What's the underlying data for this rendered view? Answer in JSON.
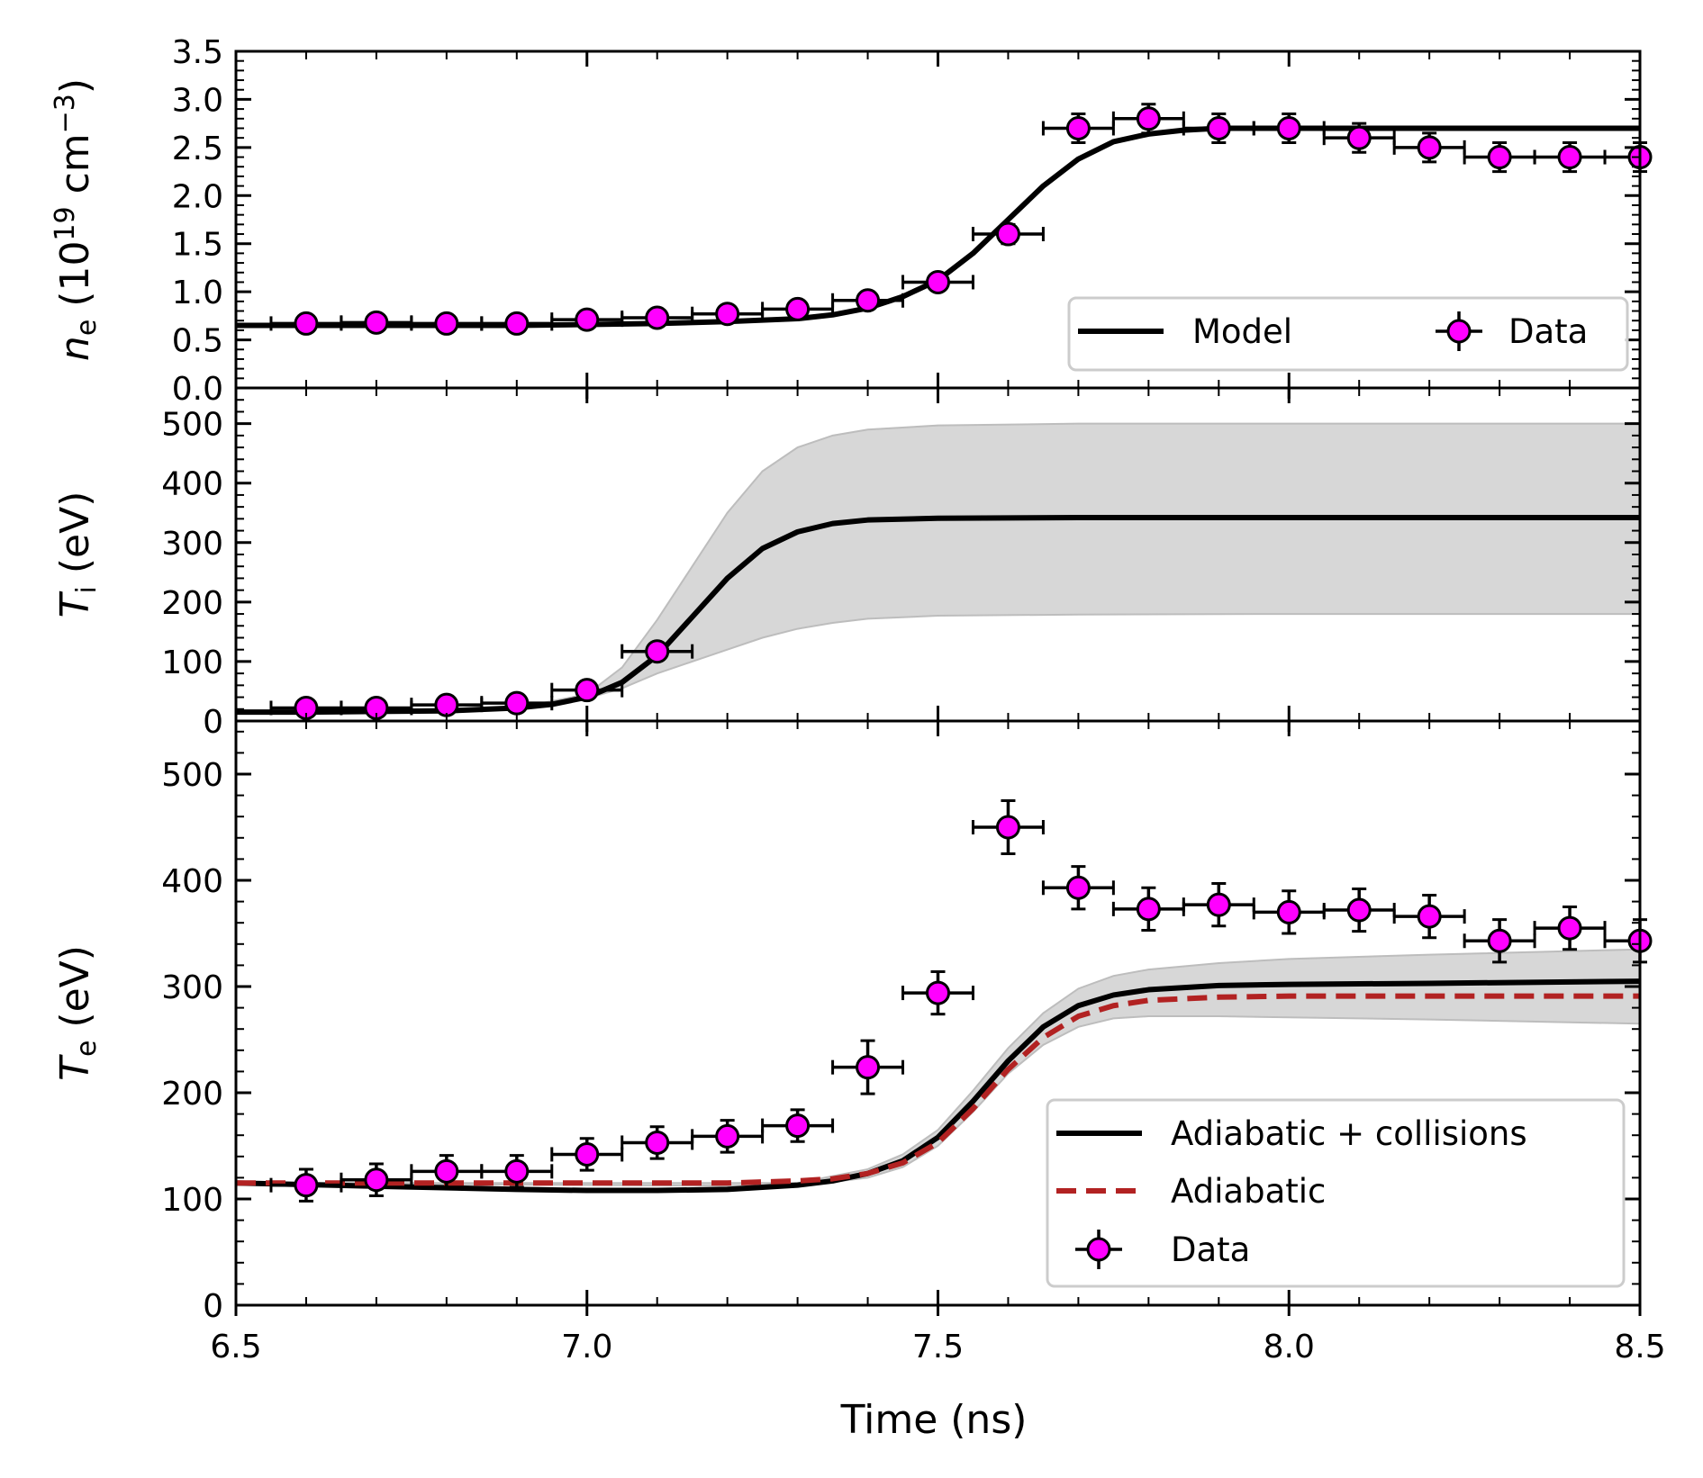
{
  "chart_data": [
    {
      "type": "line",
      "panel": "top",
      "ylabel_parts": {
        "var": "n",
        "sub": "e",
        "open": " (10",
        "exp": "19",
        "unit": " cm",
        "unit_exp": "−3",
        "close": ")"
      },
      "xlim": [
        6.5,
        8.5
      ],
      "ylim": [
        0,
        3.5
      ],
      "yticks": [
        "0.0",
        "0.5",
        "1.0",
        "1.5",
        "2.0",
        "2.5",
        "3.0",
        "3.5"
      ],
      "legend_placement": "lower-right",
      "legend": [
        "Model",
        "Data"
      ],
      "series": [
        {
          "name": "Model",
          "kind": "line",
          "color": "#000000",
          "x": [
            6.5,
            6.6,
            6.7,
            6.8,
            6.9,
            7.0,
            7.1,
            7.2,
            7.3,
            7.35,
            7.4,
            7.45,
            7.5,
            7.55,
            7.6,
            7.65,
            7.7,
            7.75,
            7.8,
            7.85,
            7.9,
            8.0,
            8.2,
            8.5
          ],
          "y": [
            0.65,
            0.65,
            0.65,
            0.65,
            0.65,
            0.66,
            0.67,
            0.69,
            0.72,
            0.76,
            0.83,
            0.95,
            1.12,
            1.4,
            1.75,
            2.1,
            2.38,
            2.56,
            2.64,
            2.68,
            2.7,
            2.7,
            2.7,
            2.7
          ]
        },
        {
          "name": "Data",
          "kind": "errorbar",
          "color": "#ff00ff",
          "x": [
            6.6,
            6.7,
            6.8,
            6.9,
            7.0,
            7.1,
            7.2,
            7.3,
            7.4,
            7.5,
            7.6,
            7.7,
            7.8,
            7.9,
            8.0,
            8.1,
            8.2,
            8.3,
            8.4,
            8.5
          ],
          "y": [
            0.67,
            0.68,
            0.67,
            0.67,
            0.71,
            0.73,
            0.77,
            0.82,
            0.91,
            1.1,
            1.6,
            2.7,
            2.8,
            2.7,
            2.7,
            2.6,
            2.5,
            2.4,
            2.4,
            2.4
          ],
          "xerr": 0.05,
          "yerr": [
            0.05,
            0.05,
            0.05,
            0.05,
            0.05,
            0.05,
            0.05,
            0.05,
            0.08,
            0.08,
            0.1,
            0.15,
            0.15,
            0.15,
            0.15,
            0.15,
            0.15,
            0.15,
            0.15,
            0.15
          ]
        }
      ]
    },
    {
      "type": "line",
      "panel": "middle",
      "ylabel_parts": {
        "var": "T",
        "sub": "i",
        "unit": " (eV)"
      },
      "xlim": [
        6.5,
        8.5
      ],
      "ylim": [
        0,
        560
      ],
      "yticks": [
        "0",
        "100",
        "200",
        "300",
        "400",
        "500"
      ],
      "band_color": "#d7d7d7",
      "series": [
        {
          "name": "Model",
          "kind": "line",
          "color": "#000000",
          "x": [
            6.5,
            6.6,
            6.7,
            6.8,
            6.9,
            6.95,
            7.0,
            7.05,
            7.1,
            7.15,
            7.2,
            7.25,
            7.3,
            7.35,
            7.4,
            7.5,
            7.7,
            8.0,
            8.5
          ],
          "y": [
            15,
            15,
            16,
            17,
            22,
            28,
            40,
            65,
            110,
            175,
            240,
            290,
            318,
            332,
            338,
            341,
            342,
            342,
            342
          ]
        },
        {
          "name": "band",
          "kind": "band",
          "x": [
            6.5,
            6.9,
            7.0,
            7.05,
            7.1,
            7.15,
            7.2,
            7.25,
            7.3,
            7.35,
            7.4,
            7.5,
            7.7,
            8.0,
            8.5
          ],
          "lower": [
            15,
            22,
            38,
            55,
            80,
            100,
            120,
            140,
            155,
            165,
            172,
            177,
            179,
            180,
            180
          ],
          "upper": [
            15,
            22,
            45,
            90,
            170,
            260,
            350,
            420,
            460,
            480,
            490,
            497,
            500,
            500,
            500
          ]
        },
        {
          "name": "Data",
          "kind": "errorbar",
          "color": "#ff00ff",
          "x": [
            6.6,
            6.7,
            6.8,
            6.9,
            7.0,
            7.1
          ],
          "y": [
            22,
            22,
            27,
            30,
            52,
            117
          ],
          "xerr": 0.05,
          "yerr": [
            5,
            5,
            5,
            5,
            8,
            10
          ]
        }
      ]
    },
    {
      "type": "line",
      "panel": "bottom",
      "ylabel_parts": {
        "var": "T",
        "sub": "e",
        "unit": " (eV)"
      },
      "xlabel": "Time (ns)",
      "xlim": [
        6.5,
        8.5
      ],
      "xticks": [
        "6.5",
        "7.0",
        "7.5",
        "8.0",
        "8.5"
      ],
      "ylim": [
        0,
        550
      ],
      "yticks": [
        "0",
        "100",
        "200",
        "300",
        "400",
        "500"
      ],
      "legend_placement": "lower-right",
      "legend": [
        "Adiabatic + collisions",
        "Adiabatic",
        "Data"
      ],
      "band_color": "#d7d7d7",
      "series": [
        {
          "name": "Adiabatic + collisions",
          "kind": "line",
          "color": "#000000",
          "x": [
            6.5,
            6.7,
            6.9,
            7.0,
            7.1,
            7.2,
            7.3,
            7.35,
            7.4,
            7.45,
            7.5,
            7.55,
            7.6,
            7.65,
            7.7,
            7.75,
            7.8,
            7.9,
            8.0,
            8.2,
            8.5
          ],
          "y": [
            115,
            112,
            109,
            108,
            108,
            109,
            113,
            117,
            124,
            136,
            158,
            192,
            230,
            262,
            282,
            292,
            297,
            301,
            302,
            303,
            305
          ]
        },
        {
          "name": "Adiabatic",
          "kind": "dashed",
          "color": "#b22222",
          "x": [
            6.5,
            6.7,
            6.9,
            7.0,
            7.1,
            7.2,
            7.3,
            7.35,
            7.4,
            7.45,
            7.5,
            7.55,
            7.6,
            7.65,
            7.7,
            7.75,
            7.8,
            7.9,
            8.0,
            8.2,
            8.5
          ],
          "y": [
            115,
            115,
            115,
            115,
            115,
            115,
            117,
            119,
            124,
            134,
            153,
            185,
            222,
            252,
            272,
            282,
            287,
            290,
            291,
            291,
            291
          ]
        },
        {
          "name": "band",
          "kind": "band",
          "x": [
            6.5,
            7.3,
            7.4,
            7.45,
            7.5,
            7.55,
            7.6,
            7.65,
            7.7,
            7.75,
            7.8,
            7.9,
            8.0,
            8.2,
            8.5
          ],
          "lower": [
            115,
            112,
            120,
            130,
            150,
            182,
            218,
            245,
            262,
            270,
            272,
            272,
            271,
            269,
            265
          ],
          "upper": [
            115,
            115,
            128,
            142,
            165,
            202,
            242,
            275,
            298,
            310,
            316,
            322,
            326,
            330,
            335
          ]
        },
        {
          "name": "Data",
          "kind": "errorbar",
          "color": "#ff00ff",
          "x": [
            6.6,
            6.7,
            6.8,
            6.9,
            7.0,
            7.1,
            7.2,
            7.3,
            7.4,
            7.5,
            7.6,
            7.7,
            7.8,
            7.9,
            8.0,
            8.1,
            8.2,
            8.3,
            8.4,
            8.5
          ],
          "y": [
            113,
            118,
            126,
            126,
            142,
            153,
            159,
            169,
            224,
            294,
            450,
            393,
            373,
            377,
            370,
            372,
            366,
            343,
            355,
            343
          ],
          "xerr": 0.05,
          "yerr": [
            15,
            15,
            15,
            15,
            15,
            15,
            15,
            15,
            25,
            20,
            25,
            20,
            20,
            20,
            20,
            20,
            20,
            20,
            20,
            20
          ]
        }
      ]
    }
  ]
}
